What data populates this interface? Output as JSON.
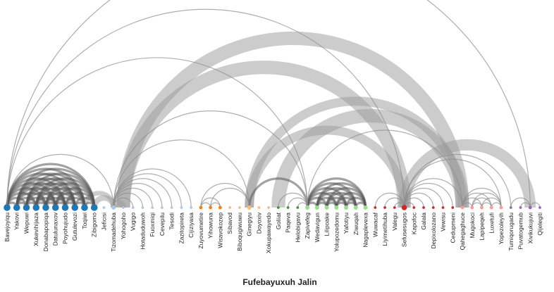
{
  "caption": "Fufebayuxuh Jalin",
  "groups": [
    {
      "id": "g1",
      "color": "#1f77b4"
    },
    {
      "id": "g2",
      "color": "#aec7e8"
    },
    {
      "id": "g3",
      "color": "#ff7f0e"
    },
    {
      "id": "g4",
      "color": "#ffbb78"
    },
    {
      "id": "g5",
      "color": "#2ca02c"
    },
    {
      "id": "g6",
      "color": "#98df8a"
    },
    {
      "id": "g7",
      "color": "#d62728"
    },
    {
      "id": "g8",
      "color": "#ff9896"
    },
    {
      "id": "g9",
      "color": "#9467bd"
    }
  ],
  "nodes": [
    {
      "label": "Bavejoyiqu",
      "group": "g1",
      "degree": 10
    },
    {
      "label": "Yakovi",
      "group": "g1",
      "degree": 10
    },
    {
      "label": "Wepuwi",
      "group": "g1",
      "degree": 10
    },
    {
      "label": "Xukevihijaza",
      "group": "g1",
      "degree": 10
    },
    {
      "label": "Donabapopiqa",
      "group": "g1",
      "degree": 10
    },
    {
      "label": "Datulunaxov",
      "group": "g1",
      "degree": 10
    },
    {
      "label": "Poyohujudo",
      "group": "g1",
      "degree": 10
    },
    {
      "label": "Gutulevozi",
      "group": "g1",
      "degree": 10
    },
    {
      "label": "Toqiwi",
      "group": "g1",
      "degree": 10
    },
    {
      "label": "Zibigomo",
      "group": "g1",
      "degree": 10
    },
    {
      "label": "Jeficisi",
      "group": "g2",
      "degree": 1
    },
    {
      "label": "Tizomadehuba",
      "group": "g2",
      "degree": 3
    },
    {
      "label": "Yohogoho",
      "group": "g2",
      "degree": 1
    },
    {
      "label": "Vugigo",
      "group": "g2",
      "degree": 1
    },
    {
      "label": "Hotaduduwoh",
      "group": "g2",
      "degree": 1
    },
    {
      "label": "Fuoxmiqi",
      "group": "g2",
      "degree": 1
    },
    {
      "label": "Cevepilu",
      "group": "g2",
      "degree": 1
    },
    {
      "label": "Tesodi",
      "group": "g2",
      "degree": 1
    },
    {
      "label": "Zazitopireta",
      "group": "g2",
      "degree": 1
    },
    {
      "label": "Cijiziyasa",
      "group": "g2",
      "degree": 1
    },
    {
      "label": "Zuyovumetire",
      "group": "g3",
      "degree": 2
    },
    {
      "label": "Yihowuna",
      "group": "g3",
      "degree": 2
    },
    {
      "label": "Wisavokozep",
      "group": "g3",
      "degree": 2
    },
    {
      "label": "Sibavod",
      "group": "g4",
      "degree": 1
    },
    {
      "label": "Biboqugiwuwu",
      "group": "g4",
      "degree": 1
    },
    {
      "label": "Ginegiyu",
      "group": "g4",
      "degree": 3
    },
    {
      "label": "Doyoxiv",
      "group": "g4",
      "degree": 1
    },
    {
      "label": "Xokupawayedo",
      "group": "g4",
      "degree": 1
    },
    {
      "label": "Goliiat",
      "group": "g5",
      "degree": 1
    },
    {
      "label": "Paqeva",
      "group": "g5",
      "degree": 1
    },
    {
      "label": "Helobigavu",
      "group": "g5",
      "degree": 1
    },
    {
      "label": "Zapivefeg",
      "group": "g6",
      "degree": 3
    },
    {
      "label": "Wedavigun",
      "group": "g6",
      "degree": 3
    },
    {
      "label": "Lilipoake",
      "group": "g6",
      "degree": 3
    },
    {
      "label": "Yolupozedomu",
      "group": "g6",
      "degree": 3
    },
    {
      "label": "Yafotiyu",
      "group": "g6",
      "degree": 3
    },
    {
      "label": "Ziwuqah",
      "group": "g6",
      "degree": 3
    },
    {
      "label": "Nagaplevexa",
      "group": "g6",
      "degree": 3
    },
    {
      "label": "Wuwacaf",
      "group": "g7",
      "degree": 1
    },
    {
      "label": "Liyimetihuba",
      "group": "g7",
      "degree": 1
    },
    {
      "label": "Valegu",
      "group": "g7",
      "degree": 1
    },
    {
      "label": "Sefusesugos",
      "group": "g7",
      "degree": 5
    },
    {
      "label": "Kapofoc",
      "group": "g7",
      "degree": 1
    },
    {
      "label": "Galala",
      "group": "g7",
      "degree": 1
    },
    {
      "label": "Depixolozano",
      "group": "g7",
      "degree": 1
    },
    {
      "label": "Vewisu",
      "group": "g7",
      "degree": 1
    },
    {
      "label": "Cedupmeni",
      "group": "g7",
      "degree": 1
    },
    {
      "label": "Qahegaghuce",
      "group": "g8",
      "degree": 2
    },
    {
      "label": "Mugokoci",
      "group": "g8",
      "degree": 2
    },
    {
      "label": "Lapipeqeh",
      "group": "g8",
      "degree": 2
    },
    {
      "label": "Luxetufi",
      "group": "g8",
      "degree": 2
    },
    {
      "label": "Yopezoleyih",
      "group": "g8",
      "degree": 2
    },
    {
      "label": "Tumiqorugadu",
      "group": "g9",
      "degree": 1
    },
    {
      "label": "Puvatogemub",
      "group": "g9",
      "degree": 1
    },
    {
      "label": "Xivikukujuvi",
      "group": "g9",
      "degree": 2
    },
    {
      "label": "Qijelegiti",
      "group": "g9",
      "degree": 1
    }
  ],
  "links": [
    [
      0,
      1,
      2
    ],
    [
      0,
      2,
      2
    ],
    [
      0,
      3,
      2
    ],
    [
      0,
      4,
      2
    ],
    [
      0,
      5,
      2
    ],
    [
      0,
      6,
      2
    ],
    [
      0,
      7,
      2
    ],
    [
      0,
      8,
      2
    ],
    [
      0,
      9,
      2
    ],
    [
      1,
      2,
      2
    ],
    [
      1,
      3,
      2
    ],
    [
      1,
      4,
      2
    ],
    [
      1,
      5,
      2
    ],
    [
      1,
      6,
      2
    ],
    [
      1,
      7,
      2
    ],
    [
      1,
      8,
      2
    ],
    [
      1,
      9,
      2
    ],
    [
      2,
      3,
      2
    ],
    [
      2,
      4,
      2
    ],
    [
      2,
      5,
      2
    ],
    [
      2,
      6,
      2
    ],
    [
      2,
      7,
      2
    ],
    [
      2,
      8,
      2
    ],
    [
      2,
      9,
      2
    ],
    [
      3,
      4,
      2
    ],
    [
      3,
      5,
      2
    ],
    [
      3,
      6,
      2
    ],
    [
      3,
      7,
      2
    ],
    [
      3,
      8,
      2
    ],
    [
      3,
      9,
      2
    ],
    [
      4,
      5,
      2
    ],
    [
      4,
      6,
      2
    ],
    [
      4,
      7,
      2
    ],
    [
      4,
      8,
      2
    ],
    [
      4,
      9,
      2
    ],
    [
      5,
      6,
      2
    ],
    [
      5,
      7,
      2
    ],
    [
      5,
      8,
      2
    ],
    [
      5,
      9,
      2
    ],
    [
      6,
      7,
      2
    ],
    [
      6,
      8,
      2
    ],
    [
      6,
      9,
      2
    ],
    [
      7,
      8,
      2
    ],
    [
      7,
      9,
      2
    ],
    [
      8,
      9,
      2
    ],
    [
      0,
      11,
      1
    ],
    [
      0,
      31,
      1
    ],
    [
      0,
      41,
      1
    ],
    [
      0,
      54,
      1
    ],
    [
      8,
      11,
      4
    ],
    [
      9,
      11,
      5
    ],
    [
      11,
      12,
      5
    ],
    [
      11,
      13,
      1
    ],
    [
      11,
      14,
      1
    ],
    [
      11,
      15,
      1
    ],
    [
      11,
      16,
      1
    ],
    [
      11,
      17,
      1
    ],
    [
      11,
      18,
      1
    ],
    [
      11,
      19,
      1
    ],
    [
      11,
      25,
      1
    ],
    [
      11,
      31,
      1
    ],
    [
      20,
      21,
      1
    ],
    [
      20,
      22,
      1
    ],
    [
      21,
      22,
      1
    ],
    [
      20,
      25,
      1
    ],
    [
      21,
      25,
      1
    ],
    [
      12,
      41,
      12
    ],
    [
      12,
      47,
      12
    ],
    [
      25,
      31,
      2
    ],
    [
      25,
      41,
      8
    ],
    [
      25,
      47,
      8
    ],
    [
      28,
      31,
      1
    ],
    [
      29,
      31,
      1
    ],
    [
      30,
      31,
      1
    ],
    [
      31,
      32,
      2
    ],
    [
      31,
      33,
      2
    ],
    [
      31,
      34,
      2
    ],
    [
      31,
      35,
      2
    ],
    [
      31,
      36,
      2
    ],
    [
      31,
      37,
      2
    ],
    [
      32,
      33,
      2
    ],
    [
      32,
      34,
      2
    ],
    [
      32,
      35,
      2
    ],
    [
      32,
      36,
      2
    ],
    [
      32,
      37,
      2
    ],
    [
      33,
      34,
      2
    ],
    [
      33,
      35,
      2
    ],
    [
      33,
      36,
      2
    ],
    [
      33,
      37,
      2
    ],
    [
      34,
      35,
      2
    ],
    [
      34,
      36,
      2
    ],
    [
      34,
      37,
      2
    ],
    [
      35,
      36,
      2
    ],
    [
      35,
      37,
      2
    ],
    [
      36,
      37,
      2
    ],
    [
      28,
      47,
      12
    ],
    [
      31,
      47,
      1
    ],
    [
      38,
      41,
      1
    ],
    [
      39,
      41,
      1
    ],
    [
      40,
      41,
      1
    ],
    [
      41,
      42,
      1
    ],
    [
      41,
      43,
      1
    ],
    [
      41,
      44,
      1
    ],
    [
      41,
      45,
      1
    ],
    [
      41,
      46,
      1
    ],
    [
      41,
      47,
      1
    ],
    [
      41,
      51,
      1
    ],
    [
      41,
      52,
      1
    ],
    [
      41,
      54,
      10
    ],
    [
      47,
      48,
      1
    ],
    [
      47,
      49,
      1
    ],
    [
      47,
      50,
      1
    ],
    [
      47,
      51,
      1
    ],
    [
      48,
      49,
      1
    ],
    [
      48,
      50,
      1
    ],
    [
      48,
      51,
      1
    ],
    [
      49,
      50,
      1
    ],
    [
      49,
      51,
      1
    ],
    [
      50,
      51,
      1
    ],
    [
      52,
      54,
      1
    ],
    [
      53,
      54,
      1
    ],
    [
      54,
      55,
      1
    ]
  ]
}
